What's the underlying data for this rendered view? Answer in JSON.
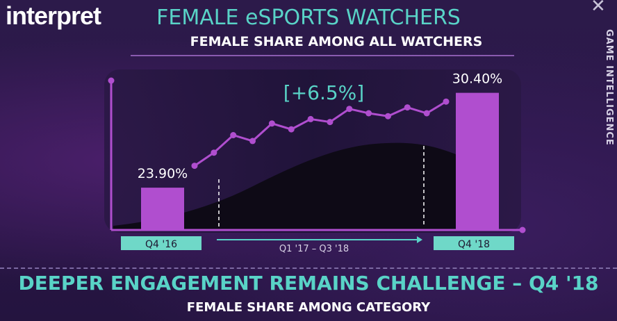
{
  "brand": {
    "logo_text": "interpret"
  },
  "header": {
    "title": "FEMALE eSPORTS WATCHERS",
    "subtitle": "FEMALE SHARE AMONG ALL WATCHERS"
  },
  "side_label": "GAME INTELLIGENCE",
  "footer": {
    "title": "DEEPER ENGAGEMENT REMAINS CHALLENGE – Q4 '18",
    "subtitle": "FEMALE SHARE AMONG CATEGORY"
  },
  "colors": {
    "accent_teal": "#59d3c7",
    "bar_purple": "#b04ecf",
    "line_purple": "#b04ecf",
    "area_black": "#0e0a16",
    "label_box": "#6fd8c8"
  },
  "chart_data": {
    "type": "bar",
    "title": "FEMALE SHARE AMONG ALL WATCHERS",
    "categories": [
      "Q4 '16",
      "Q4 '18"
    ],
    "values": [
      23.9,
      30.4
    ],
    "value_labels": [
      "23.90%",
      "30.40%"
    ],
    "change_annotation": "[+6.5%]",
    "range_label": "Q1  '17 – Q3 '18",
    "ylim": [
      21,
      32
    ],
    "trend_line": {
      "range": "Q1  '17 – Q3 '18",
      "values": [
        25.4,
        26.3,
        27.5,
        27.1,
        28.3,
        27.9,
        28.6,
        28.4,
        29.3,
        29.0,
        28.8,
        29.4,
        29.0,
        29.8
      ]
    },
    "grid": false,
    "legend": "none"
  }
}
